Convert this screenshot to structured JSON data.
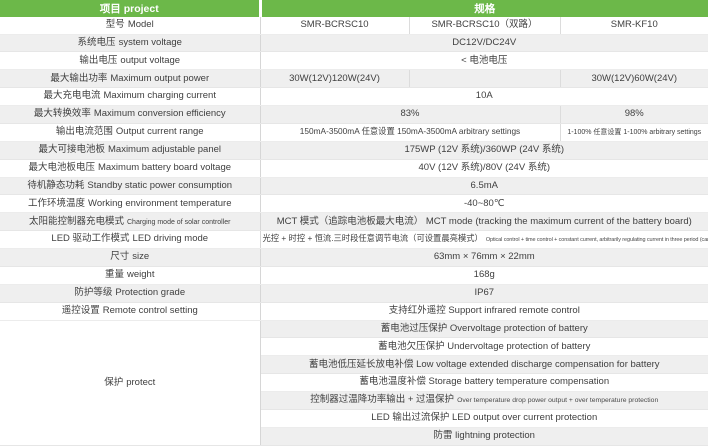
{
  "colors": {
    "header_bg": "#6cb849",
    "stripe_bg": "#efefef",
    "text": "#3f3f3f"
  },
  "header": {
    "project_label": "项目 project",
    "spec_label": "规格"
  },
  "table": {
    "rows": [
      {
        "label_cn": "型号",
        "label_en": "Model",
        "cells": [
          {
            "text": "SMR-BCRSC10"
          },
          {
            "text": "SMR-BCRSC10（双路）"
          },
          {
            "text": "SMR-KF10"
          }
        ]
      },
      {
        "label_cn": "系统电压",
        "label_en": "system voltage",
        "cells": [
          {
            "text": "DC12V/DC24V",
            "span": 3
          }
        ]
      },
      {
        "label_cn": "输出电压",
        "label_en": "output voltage",
        "cells": [
          {
            "text": "< 电池电压",
            "span": 3
          }
        ]
      },
      {
        "label_cn": "最大输出功率",
        "label_en": "Maximum output power",
        "cells": [
          {
            "text": "30W(12V)120W(24V)"
          },
          {
            "text": ""
          },
          {
            "text": "30W(12V)60W(24V)"
          }
        ]
      },
      {
        "label_cn": "最大充电电流",
        "label_en": "Maximum charging current",
        "cells": [
          {
            "text": "10A",
            "span": 3
          }
        ]
      },
      {
        "label_cn": "最大转换效率",
        "label_en": "Maximum conversion efficiency",
        "cells": [
          {
            "text": "83%",
            "span": 2
          },
          {
            "text": "98%"
          }
        ]
      },
      {
        "label_cn": "输出电流范围",
        "label_en": "Output current range",
        "cells": [
          {
            "text": "150mA-3500mA 任意设置 150mA-3500mA arbitrary settings",
            "span": 2,
            "size": "small"
          },
          {
            "text": "1-100% 任意设置 1-100% arbitrary settings",
            "size": "xsmall"
          }
        ]
      },
      {
        "label_cn": "最大可接电池板",
        "label_en": "Maximum adjustable panel",
        "cells": [
          {
            "text": "175WP (12V 系统)/360WP (24V 系统)",
            "span": 3
          }
        ]
      },
      {
        "label_cn": "最大电池板电压",
        "label_en": "Maximum battery board voltage",
        "cells": [
          {
            "text": "40V (12V 系统)/80V (24V 系统)",
            "span": 3
          }
        ]
      },
      {
        "label_cn": "待机静态功耗",
        "label_en": "Standby static power consumption",
        "cells": [
          {
            "text": "6.5mA",
            "span": 3
          }
        ]
      },
      {
        "label_cn": "工作环境温度",
        "label_en": "Working environment temperature",
        "cells": [
          {
            "text": "-40~80℃",
            "span": 3
          }
        ]
      },
      {
        "label_cn": "太阳能控制器充电模式",
        "label_en": "Charging mode of solar controller",
        "en_small": true,
        "cells": [
          {
            "text": "MCT 模式（追踪电池板最大电流）  MCT mode (tracking the maximum current of the battery board)",
            "span": 3
          }
        ]
      },
      {
        "label_cn": "LED 驱动工作模式",
        "label_en": "LED driving mode",
        "cells": [
          {
            "text": "光控 + 时控 + 恒流.三时段任意调节电流（可设置晨亮模式）",
            "span": 3,
            "size": "small",
            "sub": "Optical control + time control + constant current, arbitrarily regulating current in three period (can set morning light mode)",
            "sub_tiny": true
          }
        ]
      },
      {
        "label_cn": "尺寸",
        "label_en": "size",
        "cells": [
          {
            "text": "63mm × 76mm × 22mm",
            "span": 3
          }
        ]
      },
      {
        "label_cn": "重量",
        "label_en": "weight",
        "cells": [
          {
            "text": "168g",
            "span": 3
          }
        ]
      },
      {
        "label_cn": "防护等级",
        "label_en": "Protection grade",
        "cells": [
          {
            "text": "IP67",
            "span": 3
          }
        ]
      },
      {
        "label_cn": "遥控设置",
        "label_en": "Remote control setting",
        "cells": [
          {
            "text": "支持红外遥控  Support infrared remote control",
            "span": 3
          }
        ]
      },
      {
        "label_cn": "保护",
        "label_en": "protect",
        "label_rowspan": 7,
        "cells": [
          {
            "text": "蓄电池过压保护  Overvoltage protection of battery",
            "span": 3
          }
        ]
      },
      {
        "cells": [
          {
            "text": "蓄电池欠压保护 Undervoltage protection of battery",
            "span": 3
          }
        ]
      },
      {
        "cells": [
          {
            "text": "蓄电池低压延长放电补偿  Low voltage extended discharge compensation for battery",
            "span": 3
          }
        ]
      },
      {
        "cells": [
          {
            "text": "蓄电池温度补偿  Storage battery temperature compensation",
            "span": 3
          }
        ]
      },
      {
        "cells": [
          {
            "text": "控制器过温降功率输出 + 过温保护",
            "span": 3,
            "sub": "Over temperature drop power output + over temperature protection"
          }
        ]
      },
      {
        "cells": [
          {
            "text": "LED 输出过流保护  LED output over current protection",
            "span": 3
          }
        ]
      },
      {
        "cells": [
          {
            "text": "防雷 lightning protection",
            "span": 3
          }
        ]
      }
    ]
  }
}
